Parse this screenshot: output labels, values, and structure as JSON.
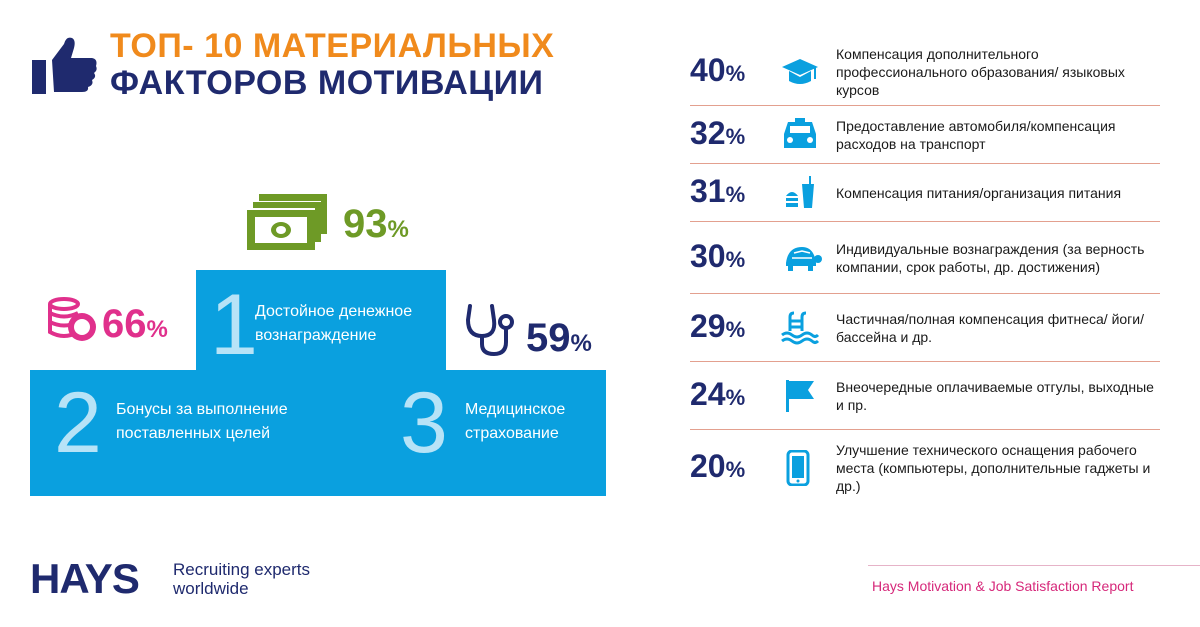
{
  "header": {
    "title_line1": "ТОП- 10 МАТЕРИАЛЬНЫХ",
    "title_line2": "ФАКТОРОВ МОТИВАЦИИ"
  },
  "colors": {
    "orange": "#f08a1c",
    "navy": "#1f2a6e",
    "blue": "#0aa0df",
    "green": "#6e9a26",
    "pink": "#e0308c",
    "separator": "#e3a08f"
  },
  "podium": {
    "first": {
      "rank": "1",
      "label": "Достойное денежное вознаграждение",
      "percent": "93",
      "icon": "money-icon"
    },
    "second": {
      "rank": "2",
      "label": "Бонусы за выполнение поставленных целей",
      "percent": "66",
      "icon": "coins-icon"
    },
    "third": {
      "rank": "3",
      "label": "Медицинское страхование",
      "percent": "59",
      "icon": "stethoscope-icon"
    },
    "percent_sign": "%"
  },
  "factors": [
    {
      "percent": "40",
      "icon": "graduation-cap-icon",
      "text": "Компенсация дополнительного профессионального образования/ языковых курсов"
    },
    {
      "percent": "32",
      "icon": "car-icon",
      "text": "Предоставление автомобиля/компенсация расходов на транспорт"
    },
    {
      "percent": "31",
      "icon": "food-icon",
      "text": "Компенсация питания/организация питания"
    },
    {
      "percent": "30",
      "icon": "turtle-icon",
      "text": "Индивидуальные вознаграждения (за верность компании, срок работы, др. достижения)"
    },
    {
      "percent": "29",
      "icon": "pool-icon",
      "text": "Частичная/полная компенсация фитнеса/ йоги/бассейна и др."
    },
    {
      "percent": "24",
      "icon": "flag-icon",
      "text": "Внеочередные оплачиваемые отгулы, выходные и пр."
    },
    {
      "percent": "20",
      "icon": "smartphone-icon",
      "text": "Улучшение технического оснащения рабочего места (компьютеры, дополнительные гаджеты и др.)"
    }
  ],
  "footer": {
    "logo": "HAYS",
    "tagline": "Recruiting experts worldwide",
    "report": "Hays Motivation & Job Satisfaction Report"
  }
}
